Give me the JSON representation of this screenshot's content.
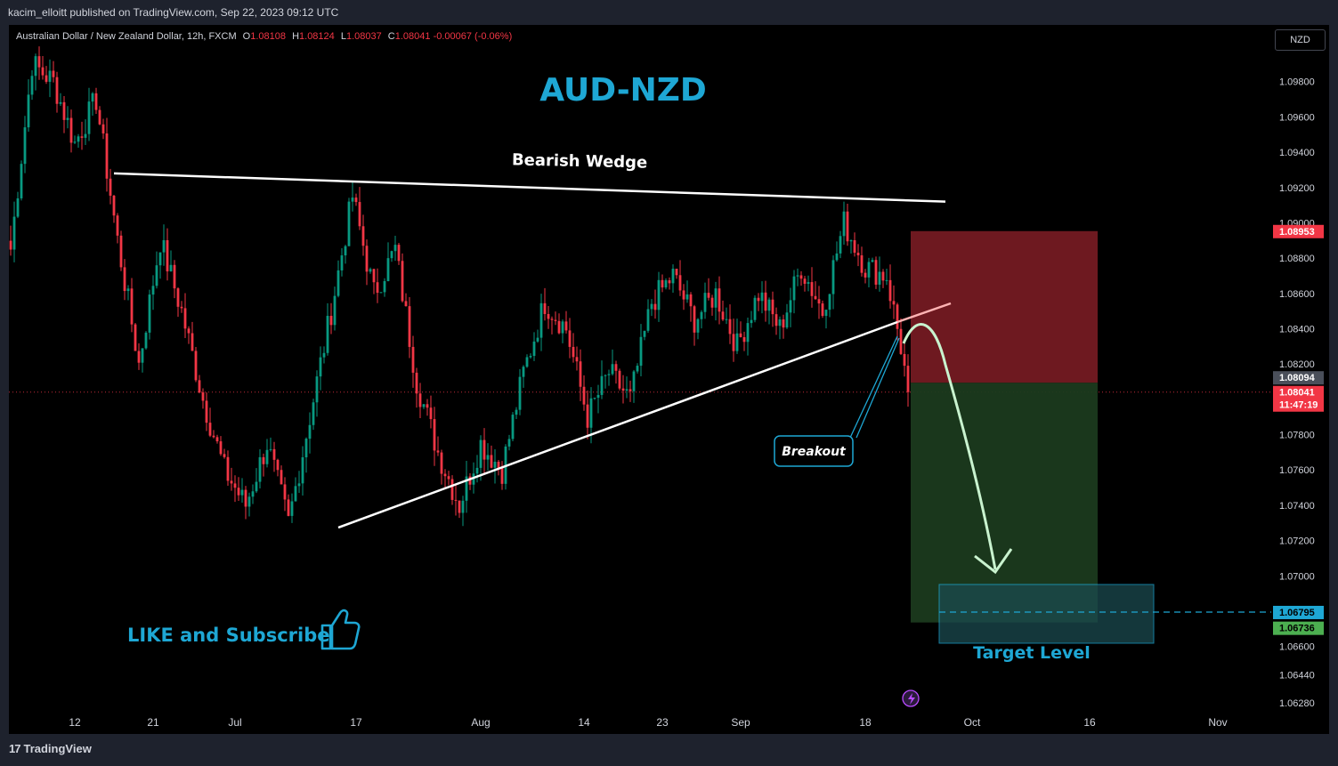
{
  "publish_line": "kacim_elloitt published on TradingView.com, Sep 22, 2023 09:12 UTC",
  "legend": {
    "symbol": "Australian Dollar / New Zealand Dollar, 12h, FXCM",
    "o_label": "O",
    "o": "1.08108",
    "h_label": "H",
    "h": "1.08124",
    "l_label": "L",
    "l": "1.08037",
    "c_label": "C",
    "c": "1.08041",
    "change": "-0.00067 (-0.06%)"
  },
  "currency_button": "NZD",
  "footer_brand": "TradingView",
  "colors": {
    "up": "#089981",
    "down": "#f23645",
    "accent": "#1ea7d4",
    "stop": "#7a1c24",
    "target": "#1b3a1e"
  },
  "chart_data": {
    "type": "candlestick",
    "title": "AUD-NZD",
    "pattern_label": "Bearish Wedge",
    "breakout_label": "Breakout",
    "target_label": "Target Level",
    "cta": "LIKE and Subscribe",
    "ylim": [
      1.0618,
      1.0998
    ],
    "y_ticks": [
      "1.09800",
      "1.09600",
      "1.09400",
      "1.09200",
      "1.09000",
      "1.08800",
      "1.08600",
      "1.08400",
      "1.08200",
      "1.07800",
      "1.07600",
      "1.07400",
      "1.07200",
      "1.07000",
      "1.06600",
      "1.06440",
      "1.06280"
    ],
    "x_ticks": [
      "12",
      "21",
      "Jul",
      "17",
      "Aug",
      "14",
      "23",
      "Sep",
      "18",
      "Oct",
      "16",
      "Nov"
    ],
    "price_labels": {
      "stop": "1.08953",
      "entry": "1.08094",
      "last": "1.08041",
      "countdown": "11:47:19",
      "target": "1.06795",
      "target2": "1.06736"
    },
    "anchors": [
      [
        0,
        1.0885
      ],
      [
        6,
        1.099
      ],
      [
        12,
        1.098
      ],
      [
        18,
        1.0945
      ],
      [
        24,
        1.097
      ],
      [
        30,
        1.089
      ],
      [
        36,
        1.082
      ],
      [
        42,
        1.089
      ],
      [
        48,
        1.085
      ],
      [
        54,
        1.08
      ],
      [
        60,
        1.076
      ],
      [
        66,
        1.074
      ],
      [
        72,
        1.0775
      ],
      [
        78,
        1.073
      ],
      [
        84,
        1.079
      ],
      [
        90,
        1.085
      ],
      [
        96,
        1.0915
      ],
      [
        102,
        1.086
      ],
      [
        108,
        1.0885
      ],
      [
        114,
        1.081
      ],
      [
        120,
        1.077
      ],
      [
        126,
        1.074
      ],
      [
        132,
        1.0775
      ],
      [
        138,
        1.076
      ],
      [
        144,
        1.0815
      ],
      [
        150,
        1.0855
      ],
      [
        156,
        1.084
      ],
      [
        162,
        1.079
      ],
      [
        168,
        1.0815
      ],
      [
        174,
        1.08
      ],
      [
        180,
        1.0855
      ],
      [
        186,
        1.087
      ],
      [
        192,
        1.0845
      ],
      [
        198,
        1.086
      ],
      [
        204,
        1.083
      ],
      [
        210,
        1.086
      ],
      [
        216,
        1.084
      ],
      [
        222,
        1.0875
      ],
      [
        228,
        1.085
      ],
      [
        234,
        1.09
      ],
      [
        240,
        1.0875
      ],
      [
        246,
        1.087
      ],
      [
        250,
        1.083
      ],
      [
        252,
        1.0804
      ]
    ],
    "wedge_upper": [
      [
        1.0928,
        29
      ],
      [
        1.0912,
        152
      ]
    ],
    "wedge_lower": [
      [
        1.0718,
        47
      ],
      [
        1.0834,
        124
      ]
    ],
    "wedge_upper_start": "Jun 29",
    "projection_to": 1.068
  }
}
